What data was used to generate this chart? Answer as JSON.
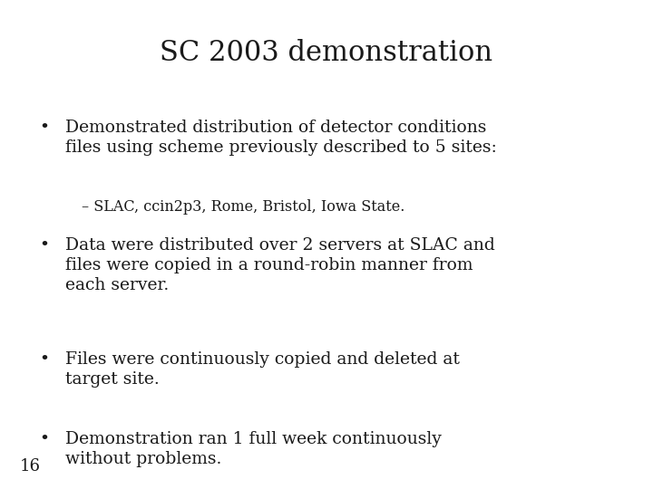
{
  "title": "SC 2003 demonstration",
  "background_color": "#ffffff",
  "text_color": "#1a1a1a",
  "title_fontsize": 22,
  "body_fontsize": 13.5,
  "sub_fontsize": 11.5,
  "page_number": "16",
  "page_fontsize": 13,
  "bullet_points": [
    {
      "level": 1,
      "text": "Demonstrated distribution of detector conditions\nfiles using scheme previously described to 5 sites:"
    },
    {
      "level": 2,
      "text": "– SLAC, ccin2p3, Rome, Bristol, Iowa State."
    },
    {
      "level": 1,
      "text": "Data were distributed over 2 servers at SLAC and\nfiles were copied in a round-robin manner from\neach server."
    },
    {
      "level": 1,
      "text": "Files were continuously copied and deleted at\ntarget site."
    },
    {
      "level": 1,
      "text": "Demonstration ran 1 full week continuously\nwithout problems."
    }
  ]
}
